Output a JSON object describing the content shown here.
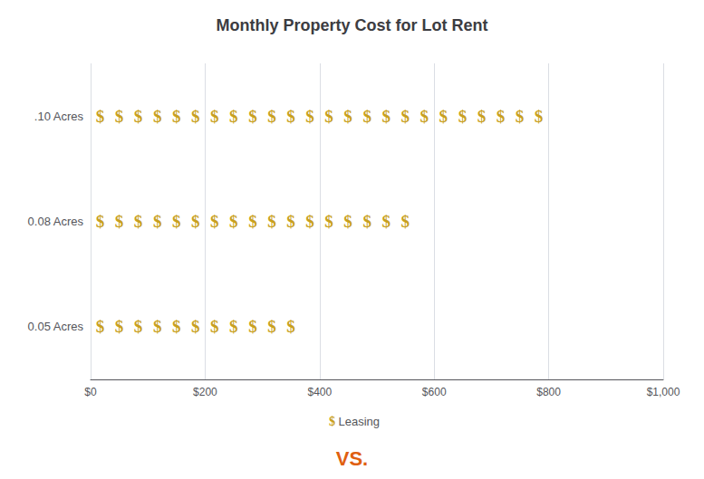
{
  "chart_data": {
    "type": "pictograph",
    "title": "Monthly Property Cost for Lot Rent",
    "orientation": "horizontal",
    "categories": [
      ".10 Acres",
      "0.08 Acres",
      "0.05 Acres"
    ],
    "series": [
      {
        "name": "Leasing",
        "color": "#C8A020",
        "marker": "$",
        "values": [
          799.2,
          566.1,
          366.3
        ]
      }
    ],
    "symbol_value": 33.3,
    "xlim": [
      0,
      1000
    ],
    "xticks": [
      {
        "value": 0,
        "label": "$0"
      },
      {
        "value": 200,
        "label": "$200"
      },
      {
        "value": 400,
        "label": "$400"
      },
      {
        "value": 600,
        "label": "$600"
      },
      {
        "value": 800,
        "label": "$800"
      },
      {
        "value": 1000,
        "label": "$1,000"
      }
    ],
    "grid": true,
    "legend": "bottom",
    "annotations": [
      {
        "text": "VS.",
        "color": "#E06010"
      }
    ]
  }
}
